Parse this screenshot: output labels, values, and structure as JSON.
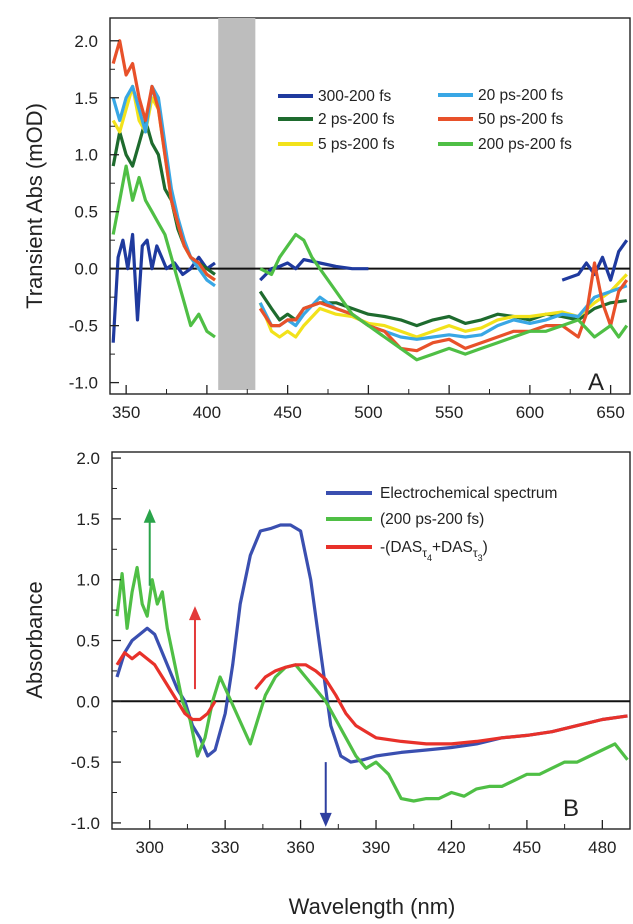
{
  "chart_data": [
    {
      "type": "line",
      "panel": "A",
      "xlabel": "",
      "ylabel": "Transient Abs (mOD)",
      "xlim": [
        340,
        662
      ],
      "ylim": [
        -1.1,
        2.2
      ],
      "xticks": [
        350,
        400,
        450,
        500,
        550,
        600,
        650
      ],
      "yticks": [
        -1.0,
        -0.5,
        0.0,
        0.5,
        1.0,
        1.5,
        2.0
      ],
      "xtick_labels": [
        "350",
        "400",
        "450",
        "500",
        "550",
        "600",
        "650"
      ],
      "ytick_labels": [
        "-1.0",
        "-0.5",
        "0.0",
        "0.5",
        "1.0",
        "1.5",
        "2.0"
      ],
      "grid": false,
      "legend_position": "top-right",
      "zero_line": true,
      "shaded_region": {
        "x_start": 407,
        "x_end": 430,
        "color": "#bdbdbd"
      },
      "series": [
        {
          "name": "300-200 fs",
          "color": "#1f3a9e",
          "x": [
            342,
            345,
            348,
            351,
            354,
            357,
            360,
            363,
            366,
            369,
            372,
            375,
            380,
            385,
            390,
            395,
            400,
            405,
            433,
            440,
            445,
            450,
            455,
            460,
            470,
            480,
            490,
            500,
            520,
            540,
            560,
            580,
            600,
            620,
            630,
            635,
            640,
            645,
            650,
            655,
            660
          ],
          "y": [
            -0.65,
            0.1,
            0.25,
            0.0,
            0.3,
            -0.45,
            0.2,
            0.25,
            0.0,
            0.2,
            0.1,
            0.0,
            0.05,
            -0.05,
            0.0,
            0.1,
            0.0,
            0.05,
            -0.1,
            0.0,
            0.02,
            0.05,
            0.0,
            0.08,
            0.05,
            0.02,
            0.0,
            0.0,
            0.0,
            0.0,
            -0.05,
            0.0,
            -0.05,
            -0.1,
            -0.05,
            0.05,
            -0.05,
            0.1,
            -0.1,
            0.15,
            0.25
          ]
        },
        {
          "name": "2 ps-200 fs",
          "color": "#1e6b2e",
          "x": [
            342,
            346,
            350,
            354,
            358,
            362,
            366,
            370,
            374,
            378,
            382,
            386,
            390,
            395,
            400,
            405,
            433,
            440,
            445,
            450,
            455,
            460,
            470,
            480,
            490,
            500,
            510,
            520,
            530,
            540,
            550,
            560,
            570,
            580,
            590,
            600,
            610,
            620,
            630,
            640,
            650,
            660
          ],
          "y": [
            0.9,
            1.2,
            1.0,
            0.9,
            1.1,
            1.3,
            1.1,
            1.0,
            0.7,
            0.6,
            0.35,
            0.2,
            0.1,
            0.05,
            0.0,
            -0.05,
            -0.2,
            -0.35,
            -0.45,
            -0.4,
            -0.45,
            -0.35,
            -0.3,
            -0.3,
            -0.35,
            -0.4,
            -0.42,
            -0.45,
            -0.5,
            -0.45,
            -0.42,
            -0.48,
            -0.45,
            -0.4,
            -0.42,
            -0.45,
            -0.4,
            -0.42,
            -0.45,
            -0.35,
            -0.3,
            -0.28
          ]
        },
        {
          "name": "5 ps-200 fs",
          "color": "#f2e21a",
          "x": [
            342,
            346,
            350,
            354,
            358,
            362,
            366,
            370,
            374,
            378,
            382,
            386,
            390,
            395,
            400,
            405,
            433,
            440,
            445,
            450,
            455,
            460,
            470,
            480,
            490,
            500,
            510,
            520,
            530,
            540,
            550,
            560,
            570,
            580,
            590,
            600,
            610,
            620,
            630,
            640,
            650,
            660
          ],
          "y": [
            1.3,
            1.2,
            1.4,
            1.6,
            1.3,
            1.2,
            1.5,
            1.4,
            1.0,
            0.6,
            0.4,
            0.2,
            0.1,
            0.0,
            -0.05,
            -0.1,
            -0.3,
            -0.55,
            -0.6,
            -0.55,
            -0.6,
            -0.5,
            -0.35,
            -0.4,
            -0.42,
            -0.48,
            -0.5,
            -0.55,
            -0.6,
            -0.55,
            -0.5,
            -0.55,
            -0.52,
            -0.45,
            -0.42,
            -0.42,
            -0.4,
            -0.38,
            -0.42,
            -0.3,
            -0.2,
            -0.05
          ]
        },
        {
          "name": "20 ps-200 fs",
          "color": "#39a7e5",
          "x": [
            342,
            346,
            350,
            354,
            358,
            362,
            366,
            370,
            374,
            378,
            382,
            386,
            390,
            395,
            400,
            405,
            433,
            440,
            445,
            450,
            455,
            460,
            470,
            480,
            490,
            500,
            510,
            520,
            530,
            540,
            550,
            560,
            570,
            580,
            590,
            600,
            610,
            620,
            630,
            640,
            650,
            660
          ],
          "y": [
            1.5,
            1.3,
            1.5,
            1.6,
            1.4,
            1.2,
            1.6,
            1.5,
            1.1,
            0.7,
            0.45,
            0.25,
            0.1,
            0.0,
            -0.1,
            -0.15,
            -0.3,
            -0.5,
            -0.5,
            -0.45,
            -0.5,
            -0.4,
            -0.25,
            -0.35,
            -0.4,
            -0.5,
            -0.55,
            -0.6,
            -0.62,
            -0.6,
            -0.58,
            -0.6,
            -0.58,
            -0.5,
            -0.45,
            -0.48,
            -0.45,
            -0.4,
            -0.42,
            -0.25,
            -0.2,
            -0.15
          ]
        },
        {
          "name": "50 ps-200 fs",
          "color": "#e8512a",
          "x": [
            342,
            346,
            350,
            354,
            358,
            362,
            366,
            370,
            374,
            378,
            382,
            386,
            390,
            395,
            400,
            405,
            433,
            440,
            445,
            450,
            455,
            460,
            470,
            480,
            490,
            500,
            510,
            520,
            530,
            540,
            550,
            560,
            570,
            580,
            590,
            600,
            610,
            620,
            630,
            635,
            640,
            645,
            650,
            655,
            660
          ],
          "y": [
            1.8,
            2.0,
            1.7,
            1.8,
            1.5,
            1.3,
            1.6,
            1.4,
            1.0,
            0.6,
            0.4,
            0.2,
            0.1,
            0.05,
            -0.05,
            -0.1,
            -0.35,
            -0.5,
            -0.5,
            -0.45,
            -0.45,
            -0.35,
            -0.3,
            -0.35,
            -0.4,
            -0.5,
            -0.55,
            -0.7,
            -0.72,
            -0.65,
            -0.62,
            -0.7,
            -0.65,
            -0.6,
            -0.55,
            -0.55,
            -0.5,
            -0.5,
            -0.6,
            -0.4,
            0.05,
            -0.3,
            -0.5,
            -0.2,
            -0.1
          ]
        },
        {
          "name": "200 ps-200 fs",
          "color": "#4fbf45",
          "x": [
            342,
            346,
            350,
            354,
            358,
            362,
            366,
            370,
            374,
            378,
            382,
            386,
            390,
            395,
            400,
            405,
            433,
            440,
            445,
            450,
            455,
            460,
            465,
            470,
            480,
            490,
            500,
            510,
            520,
            530,
            540,
            550,
            560,
            570,
            580,
            590,
            600,
            610,
            620,
            630,
            640,
            650,
            655,
            660
          ],
          "y": [
            0.3,
            0.6,
            0.9,
            0.6,
            0.8,
            0.6,
            0.5,
            0.4,
            0.3,
            0.1,
            -0.1,
            -0.3,
            -0.5,
            -0.4,
            -0.55,
            -0.6,
            0.0,
            -0.05,
            0.1,
            0.2,
            0.3,
            0.25,
            0.1,
            0.0,
            -0.2,
            -0.4,
            -0.5,
            -0.6,
            -0.7,
            -0.8,
            -0.75,
            -0.7,
            -0.75,
            -0.7,
            -0.65,
            -0.6,
            -0.55,
            -0.55,
            -0.5,
            -0.45,
            -0.6,
            -0.5,
            -0.6,
            -0.5
          ]
        }
      ],
      "panel_label": "A"
    },
    {
      "type": "line",
      "panel": "B",
      "xlabel": "Wavelength (nm)",
      "ylabel": "Absorbance",
      "xlim": [
        285,
        491
      ],
      "ylim": [
        -1.05,
        2.05
      ],
      "xticks": [
        300,
        330,
        360,
        390,
        420,
        450,
        480
      ],
      "yticks": [
        -1.0,
        -0.5,
        0.0,
        0.5,
        1.0,
        1.5,
        2.0
      ],
      "xtick_labels": [
        "300",
        "330",
        "360",
        "390",
        "420",
        "450",
        "480"
      ],
      "ytick_labels": [
        "-1.0",
        "-0.5",
        "0.0",
        "0.5",
        "1.0",
        "1.5",
        "2.0"
      ],
      "grid": false,
      "legend_position": "top-right",
      "zero_line": true,
      "arrows": [
        {
          "color": "#2aa44a",
          "x": 300,
          "y_from": 0.95,
          "y_to": 1.55,
          "direction": "up"
        },
        {
          "color": "#e33a3a",
          "x": 318,
          "y_from": 0.1,
          "y_to": 0.75,
          "direction": "up"
        },
        {
          "color": "#2e3fa0",
          "x": 370,
          "y_from": -0.5,
          "y_to": -1.0,
          "direction": "down"
        }
      ],
      "series": [
        {
          "name": "Electrochemical spectrum",
          "color": "#3a4fb0",
          "x": [
            287,
            290,
            293,
            296,
            299,
            302,
            305,
            308,
            311,
            314,
            317,
            320,
            323,
            326,
            330,
            333,
            336,
            340,
            344,
            348,
            352,
            356,
            360,
            364,
            368,
            372,
            376,
            380,
            385,
            390,
            400,
            410,
            420,
            430,
            440,
            450,
            460,
            470,
            480,
            490
          ],
          "y": [
            0.2,
            0.4,
            0.5,
            0.55,
            0.6,
            0.55,
            0.4,
            0.25,
            0.1,
            0.0,
            -0.2,
            -0.3,
            -0.45,
            -0.4,
            -0.1,
            0.3,
            0.8,
            1.2,
            1.4,
            1.42,
            1.45,
            1.45,
            1.4,
            1.0,
            0.4,
            -0.2,
            -0.45,
            -0.5,
            -0.48,
            -0.45,
            -0.42,
            -0.4,
            -0.38,
            -0.35,
            -0.3,
            -0.28,
            -0.25,
            -0.2,
            -0.15,
            -0.12
          ]
        },
        {
          "name": "(200 ps-200 fs)",
          "color": "#4fbf45",
          "x": [
            287,
            289,
            291,
            293,
            295,
            297,
            299,
            301,
            303,
            305,
            307,
            310,
            313,
            316,
            319,
            322,
            325,
            328,
            340,
            343,
            346,
            350,
            354,
            358,
            362,
            366,
            370,
            374,
            378,
            382,
            386,
            390,
            395,
            400,
            405,
            410,
            415,
            420,
            425,
            430,
            435,
            440,
            445,
            450,
            455,
            460,
            465,
            470,
            475,
            480,
            485,
            490
          ],
          "y": [
            0.7,
            1.05,
            0.6,
            0.9,
            1.1,
            0.8,
            0.7,
            1.0,
            0.8,
            0.9,
            0.6,
            0.3,
            0.0,
            -0.15,
            -0.45,
            -0.3,
            0.0,
            0.2,
            -0.35,
            -0.15,
            0.05,
            0.2,
            0.28,
            0.3,
            0.2,
            0.1,
            0.0,
            -0.15,
            -0.3,
            -0.45,
            -0.55,
            -0.5,
            -0.6,
            -0.8,
            -0.82,
            -0.8,
            -0.8,
            -0.75,
            -0.78,
            -0.72,
            -0.7,
            -0.7,
            -0.65,
            -0.6,
            -0.6,
            -0.55,
            -0.5,
            -0.5,
            -0.45,
            -0.4,
            -0.35,
            -0.48
          ]
        },
        {
          "name": "-(DAS",
          "color": "#e8312a",
          "x": [
            287,
            290,
            293,
            296,
            299,
            302,
            305,
            308,
            311,
            314,
            317,
            320,
            323,
            326,
            342,
            346,
            350,
            354,
            358,
            362,
            366,
            370,
            374,
            378,
            382,
            386,
            390,
            400,
            410,
            420,
            430,
            440,
            450,
            460,
            470,
            480,
            490
          ],
          "y": [
            0.3,
            0.4,
            0.35,
            0.4,
            0.35,
            0.3,
            0.2,
            0.1,
            0.0,
            -0.1,
            -0.15,
            -0.15,
            -0.1,
            0.0,
            0.1,
            0.2,
            0.25,
            0.28,
            0.3,
            0.3,
            0.25,
            0.18,
            0.05,
            -0.1,
            -0.2,
            -0.25,
            -0.3,
            -0.33,
            -0.35,
            -0.35,
            -0.33,
            -0.3,
            -0.28,
            -0.25,
            -0.2,
            -0.15,
            -0.12
          ]
        }
      ],
      "legend_subscripts": {
        "tau4": "4",
        "tau3": "3",
        "label_parts": [
          "-(DAS",
          "τ",
          "+DAS",
          "τ",
          ")"
        ]
      },
      "panel_label": "B"
    }
  ]
}
